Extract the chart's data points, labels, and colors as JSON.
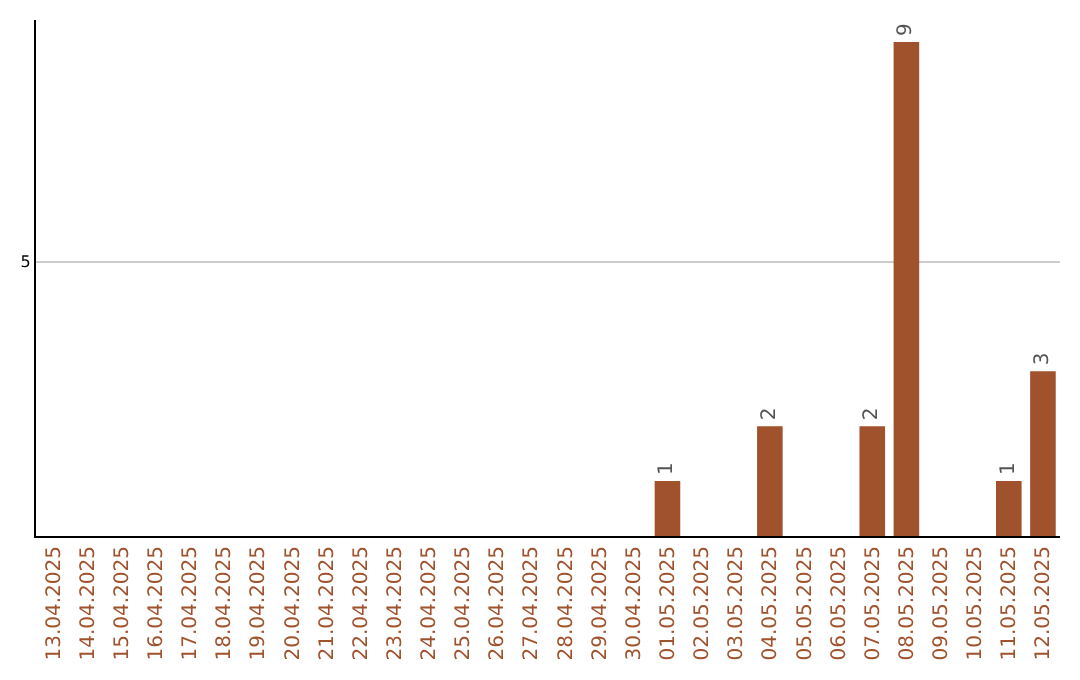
{
  "chart_data": {
    "type": "bar",
    "categories": [
      "13.04.2025",
      "14.04.2025",
      "15.04.2025",
      "16.04.2025",
      "17.04.2025",
      "18.04.2025",
      "19.04.2025",
      "20.04.2025",
      "21.04.2025",
      "22.04.2025",
      "23.04.2025",
      "24.04.2025",
      "25.04.2025",
      "26.04.2025",
      "27.04.2025",
      "28.04.2025",
      "29.04.2025",
      "30.04.2025",
      "01.05.2025",
      "02.05.2025",
      "03.05.2025",
      "04.05.2025",
      "05.05.2025",
      "06.05.2025",
      "07.05.2025",
      "08.05.2025",
      "09.05.2025",
      "10.05.2025",
      "11.05.2025",
      "12.05.2025"
    ],
    "values": [
      null,
      null,
      null,
      null,
      null,
      null,
      null,
      null,
      null,
      null,
      null,
      null,
      null,
      null,
      null,
      null,
      null,
      null,
      1,
      null,
      null,
      2,
      null,
      null,
      2,
      9,
      null,
      null,
      1,
      3
    ],
    "data_labels": true,
    "color": "#a0522d",
    "ylim": [
      0,
      9.4
    ],
    "yticks": [
      5
    ],
    "grid": "y",
    "legend": false
  }
}
